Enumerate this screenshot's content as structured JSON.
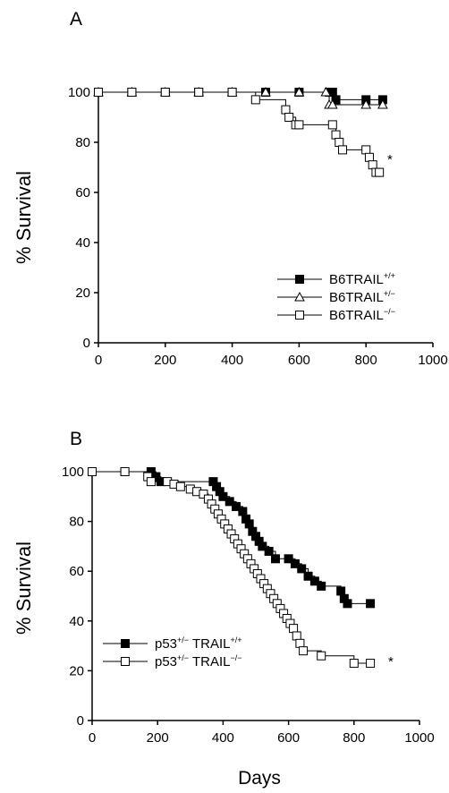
{
  "figure": {
    "xlabel": "Days",
    "significance_mark": "*"
  },
  "chart_data": [
    {
      "type": "line",
      "panel_label": "A",
      "ylabel": "% Survival",
      "xlabel": "",
      "xlim": [
        0,
        1000
      ],
      "ylim": [
        0,
        100
      ],
      "xticks": [
        0,
        200,
        400,
        600,
        800,
        1000
      ],
      "yticks": [
        0,
        20,
        40,
        60,
        80,
        100
      ],
      "grid": false,
      "legend_position": "bottom-right",
      "annotations": [
        {
          "text": "*",
          "x": 895,
          "y": 68
        }
      ],
      "series": [
        {
          "name": "B6TRAIL+/+",
          "legend": {
            "base": "B6TRAIL",
            "sup": "+/+"
          },
          "marker": "filled-square",
          "x": [
            0,
            100,
            200,
            300,
            400,
            500,
            600,
            690,
            700,
            710,
            800,
            850
          ],
          "y": [
            100,
            100,
            100,
            100,
            100,
            100,
            100,
            100,
            100,
            97,
            97,
            97
          ]
        },
        {
          "name": "B6TRAIL+/-",
          "legend": {
            "base": "B6TRAIL",
            "sup": "+/−"
          },
          "marker": "open-triangle",
          "x": [
            0,
            100,
            200,
            300,
            400,
            500,
            600,
            680,
            690,
            700,
            800,
            850
          ],
          "y": [
            100,
            100,
            100,
            100,
            100,
            100,
            100,
            100,
            95,
            95,
            95,
            95
          ]
        },
        {
          "name": "B6TRAIL-/-",
          "legend": {
            "base": "B6TRAIL",
            "sup": "−/−"
          },
          "marker": "open-square",
          "x": [
            0,
            100,
            200,
            300,
            400,
            470,
            560,
            570,
            590,
            600,
            700,
            710,
            720,
            730,
            800,
            810,
            820,
            830,
            840
          ],
          "y": [
            100,
            100,
            100,
            100,
            100,
            97,
            93,
            90,
            87,
            87,
            87,
            83,
            80,
            77,
            77,
            74,
            71,
            68,
            68
          ]
        }
      ]
    },
    {
      "type": "line",
      "panel_label": "B",
      "ylabel": "% Survival",
      "xlabel": "Days",
      "xlim": [
        0,
        1000
      ],
      "ylim": [
        0,
        100
      ],
      "xticks": [
        0,
        200,
        400,
        600,
        800,
        1000
      ],
      "yticks": [
        0,
        20,
        40,
        60,
        80,
        100
      ],
      "grid": false,
      "legend_position": "bottom-left",
      "annotations": [
        {
          "text": "*",
          "x": 895,
          "y": 22
        }
      ],
      "series": [
        {
          "name": "p53+/- TRAIL+/+",
          "legend": {
            "p": "p53",
            "p_sup": "+/−",
            "t": " TRAIL",
            "t_sup": "+/+"
          },
          "marker": "filled-square",
          "x": [
            0,
            100,
            180,
            195,
            210,
            370,
            380,
            390,
            400,
            420,
            440,
            460,
            470,
            480,
            490,
            500,
            510,
            520,
            540,
            560,
            600,
            620,
            640,
            660,
            680,
            700,
            760,
            770,
            780,
            850
          ],
          "y": [
            100,
            100,
            100,
            98,
            96,
            96,
            94,
            92,
            90,
            88,
            86,
            84,
            81,
            79,
            76,
            74,
            72,
            70,
            68,
            65,
            65,
            63,
            61,
            58,
            56,
            54,
            52,
            49,
            47,
            47
          ]
        },
        {
          "name": "p53+/- TRAIL-/-",
          "legend": {
            "p": "p53",
            "p_sup": "+/−",
            "t": " TRAIL",
            "t_sup": "−/−"
          },
          "marker": "open-square",
          "x": [
            0,
            100,
            170,
            180,
            230,
            250,
            270,
            300,
            320,
            340,
            355,
            365,
            375,
            385,
            395,
            405,
            415,
            425,
            435,
            445,
            455,
            465,
            475,
            485,
            495,
            505,
            515,
            525,
            535,
            545,
            555,
            565,
            575,
            585,
            595,
            605,
            615,
            625,
            635,
            645,
            700,
            800,
            850
          ],
          "y": [
            100,
            100,
            98,
            96,
            96,
            95,
            94,
            93,
            92,
            91,
            89,
            87,
            85,
            83,
            81,
            79,
            77,
            75,
            73,
            71,
            69,
            67,
            65,
            63,
            61,
            59,
            57,
            55,
            53,
            51,
            49,
            47,
            45,
            43,
            41,
            39,
            37,
            34,
            31,
            28,
            26,
            23,
            23
          ]
        }
      ]
    }
  ]
}
